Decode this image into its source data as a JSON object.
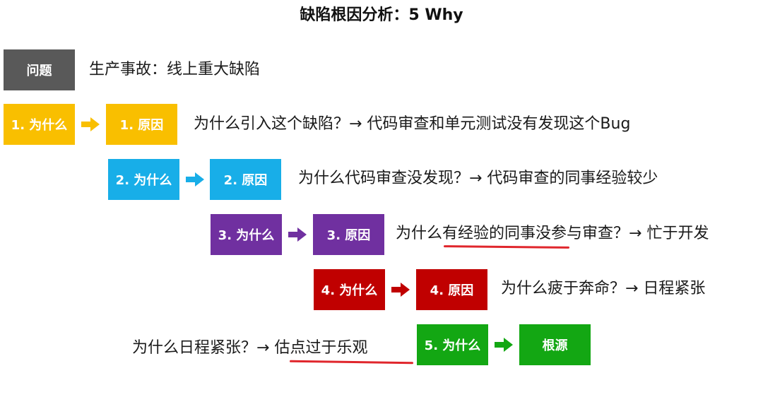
{
  "title": "缺陷根因分析：5 Why",
  "problem": {
    "label": "问题",
    "text": "生产事故：线上重大缺陷",
    "color": "#595959"
  },
  "rows": [
    {
      "why_label": "1. 为什么",
      "cause_label": "1. 原因",
      "text": "为什么引入这个缺陷？→ 代码审查和单元测试没有发现这个Bug",
      "color": "#f9bf00"
    },
    {
      "why_label": "2. 为什么",
      "cause_label": "2. 原因",
      "text": "为什么代码审查没发现？→ 代码审查的同事经验较少",
      "color": "#18aee8"
    },
    {
      "why_label": "3. 为什么",
      "cause_label": "3. 原因",
      "text_pre": "为什么",
      "text_underlined": "有经验的同事没",
      "text_post": "参与审查？→ 忙于开发",
      "color": "#7030a0"
    },
    {
      "why_label": "4. 为什么",
      "cause_label": "4. 原因",
      "text": "为什么疲于奔命？→ 日程紧张",
      "color": "#c00000"
    }
  ],
  "final": {
    "text_pre": "为什么日程紧张？→ ",
    "text_underlined": "估点过于乐观",
    "why_label": "5. 为什么",
    "root_label": "根源",
    "color": "#13a713"
  },
  "underline_color": "#e0262c"
}
